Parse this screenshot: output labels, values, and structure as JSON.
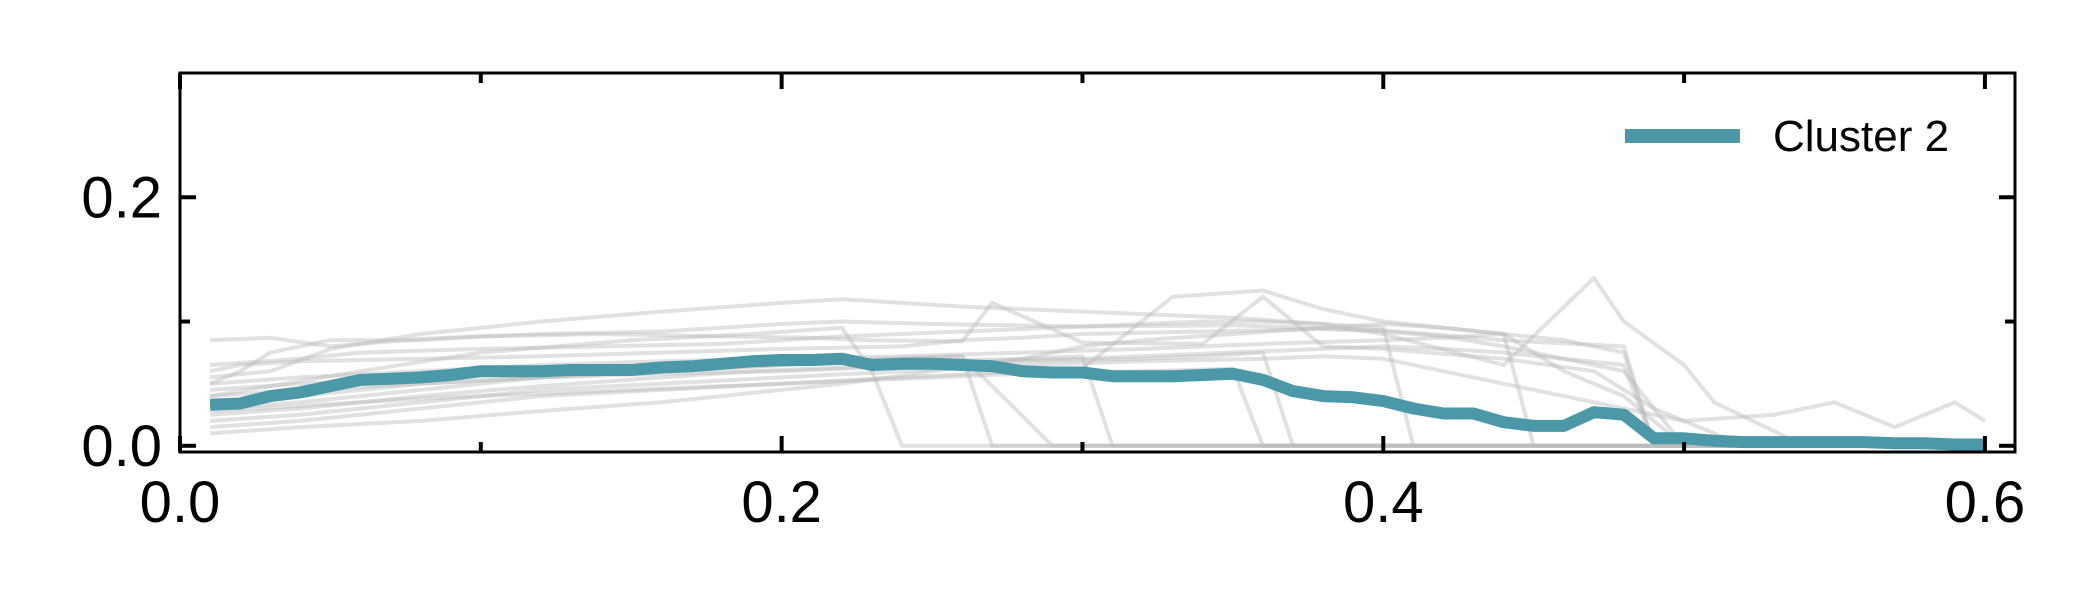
{
  "chart_data": {
    "type": "line",
    "title": "",
    "xlabel": "",
    "ylabel": "",
    "xlim": [
      0.0,
      0.61
    ],
    "ylim": [
      -0.005,
      0.3
    ],
    "x_ticks": [
      0.0,
      0.2,
      0.4,
      0.6
    ],
    "x_tick_labels": [
      "0.0",
      "0.2",
      "0.4",
      "0.6"
    ],
    "y_ticks": [
      0.0,
      0.2
    ],
    "y_tick_labels": [
      "0.0",
      "0.2"
    ],
    "y_minor_ticks": [
      0.1
    ],
    "x_minor_ticks": [
      0.1,
      0.3,
      0.5
    ],
    "grid": false,
    "legend": {
      "placement": "top-right",
      "entries": [
        "Cluster 2"
      ]
    },
    "colors": {
      "highlight": "#4a98a8",
      "background_lines": "#bdbdbd",
      "axis": "#000000"
    },
    "series": [
      {
        "name": "Cluster 2",
        "highlight": true,
        "x": [
          0.01,
          0.02,
          0.03,
          0.04,
          0.05,
          0.06,
          0.07,
          0.08,
          0.09,
          0.1,
          0.11,
          0.12,
          0.13,
          0.14,
          0.15,
          0.16,
          0.17,
          0.18,
          0.19,
          0.2,
          0.21,
          0.22,
          0.23,
          0.24,
          0.25,
          0.26,
          0.27,
          0.28,
          0.29,
          0.3,
          0.31,
          0.32,
          0.33,
          0.34,
          0.35,
          0.36,
          0.37,
          0.38,
          0.39,
          0.4,
          0.41,
          0.42,
          0.43,
          0.44,
          0.45,
          0.46,
          0.47,
          0.48,
          0.49,
          0.5,
          0.51,
          0.52,
          0.53,
          0.54,
          0.55,
          0.56,
          0.57,
          0.58,
          0.59,
          0.6
        ],
        "values": [
          0.033,
          0.034,
          0.04,
          0.043,
          0.048,
          0.053,
          0.054,
          0.055,
          0.057,
          0.06,
          0.06,
          0.06,
          0.061,
          0.061,
          0.061,
          0.063,
          0.064,
          0.066,
          0.068,
          0.069,
          0.069,
          0.07,
          0.065,
          0.066,
          0.066,
          0.065,
          0.064,
          0.06,
          0.059,
          0.059,
          0.056,
          0.056,
          0.056,
          0.057,
          0.058,
          0.053,
          0.044,
          0.04,
          0.039,
          0.036,
          0.03,
          0.026,
          0.026,
          0.019,
          0.016,
          0.016,
          0.027,
          0.025,
          0.006,
          0.006,
          0.004,
          0.003,
          0.003,
          0.003,
          0.003,
          0.003,
          0.002,
          0.002,
          0.001,
          0.001
        ]
      },
      {
        "x": [
          0.01,
          0.03,
          0.05,
          0.08,
          0.12,
          0.16,
          0.2,
          0.22,
          0.25,
          0.3,
          0.35,
          0.4,
          0.44,
          0.48,
          0.49,
          0.52,
          0.56,
          0.6
        ],
        "values": [
          0.085,
          0.087,
          0.08,
          0.086,
          0.09,
          0.092,
          0.098,
          0.1,
          0.098,
          0.096,
          0.097,
          0.093,
          0.085,
          0.08,
          0.0,
          0.0,
          0.0,
          0.0
        ]
      },
      {
        "x": [
          0.01,
          0.03,
          0.05,
          0.08,
          0.12,
          0.16,
          0.2,
          0.22,
          0.26,
          0.3,
          0.35,
          0.38,
          0.4,
          0.44,
          0.47,
          0.48,
          0.5,
          0.51,
          0.54,
          0.58,
          0.6
        ],
        "values": [
          0.055,
          0.06,
          0.078,
          0.09,
          0.1,
          0.108,
          0.115,
          0.118,
          0.112,
          0.108,
          0.103,
          0.098,
          0.09,
          0.065,
          0.135,
          0.1,
          0.065,
          0.035,
          0.0,
          0.0,
          0.0
        ]
      },
      {
        "x": [
          0.01,
          0.03,
          0.06,
          0.1,
          0.15,
          0.19,
          0.22,
          0.23,
          0.24,
          0.3,
          0.36,
          0.4,
          0.43,
          0.45,
          0.46,
          0.47,
          0.48,
          0.49,
          0.5,
          0.55,
          0.58,
          0.6
        ],
        "values": [
          0.04,
          0.048,
          0.06,
          0.075,
          0.085,
          0.09,
          0.095,
          0.06,
          0.0,
          0.0,
          0.0,
          0.0,
          0.0,
          0.0,
          0.0,
          0.0,
          0.0,
          0.0,
          0.0,
          0.0,
          0.0,
          0.0
        ]
      },
      {
        "x": [
          0.01,
          0.04,
          0.08,
          0.12,
          0.16,
          0.2,
          0.22,
          0.24,
          0.26,
          0.27,
          0.3,
          0.35,
          0.38,
          0.4,
          0.42,
          0.44,
          0.47,
          0.49,
          0.52,
          0.55,
          0.58,
          0.6
        ],
        "values": [
          0.03,
          0.035,
          0.045,
          0.055,
          0.06,
          0.065,
          0.068,
          0.07,
          0.072,
          0.0,
          0.0,
          0.0,
          0.0,
          0.0,
          0.0,
          0.0,
          0.0,
          0.0,
          0.0,
          0.0,
          0.0,
          0.0
        ]
      },
      {
        "x": [
          0.01,
          0.02,
          0.03,
          0.05,
          0.08,
          0.1,
          0.14,
          0.18,
          0.21,
          0.23,
          0.26,
          0.27,
          0.3,
          0.34,
          0.36,
          0.38,
          0.4,
          0.44,
          0.47,
          0.49,
          0.52,
          0.56,
          0.6
        ],
        "values": [
          0.05,
          0.06,
          0.075,
          0.085,
          0.085,
          0.088,
          0.09,
          0.088,
          0.087,
          0.085,
          0.084,
          0.115,
          0.083,
          0.082,
          0.12,
          0.08,
          0.078,
          0.07,
          0.06,
          0.03,
          0.0,
          0.0,
          0.0
        ]
      },
      {
        "x": [
          0.01,
          0.04,
          0.08,
          0.12,
          0.16,
          0.2,
          0.24,
          0.28,
          0.32,
          0.36,
          0.38,
          0.4,
          0.42,
          0.44,
          0.46,
          0.48,
          0.5,
          0.53,
          0.55,
          0.57,
          0.59,
          0.6
        ],
        "values": [
          0.02,
          0.025,
          0.035,
          0.045,
          0.05,
          0.055,
          0.06,
          0.065,
          0.068,
          0.07,
          0.072,
          0.07,
          0.06,
          0.05,
          0.04,
          0.03,
          0.02,
          0.025,
          0.035,
          0.015,
          0.035,
          0.02
        ]
      },
      {
        "x": [
          0.01,
          0.04,
          0.08,
          0.12,
          0.16,
          0.2,
          0.24,
          0.28,
          0.3,
          0.33,
          0.36,
          0.38,
          0.4,
          0.42,
          0.44,
          0.46,
          0.48,
          0.5,
          0.54,
          0.58,
          0.6
        ],
        "values": [
          0.015,
          0.02,
          0.03,
          0.04,
          0.045,
          0.05,
          0.055,
          0.06,
          0.062,
          0.12,
          0.125,
          0.11,
          0.1,
          0.095,
          0.09,
          0.06,
          0.04,
          0.0,
          0.0,
          0.0,
          0.0
        ]
      },
      {
        "x": [
          0.01,
          0.02,
          0.04,
          0.08,
          0.12,
          0.16,
          0.2,
          0.24,
          0.26,
          0.28,
          0.3,
          0.32,
          0.34,
          0.36,
          0.38,
          0.4,
          0.42,
          0.44,
          0.46,
          0.48,
          0.5,
          0.55,
          0.6
        ],
        "values": [
          0.06,
          0.065,
          0.068,
          0.07,
          0.072,
          0.075,
          0.078,
          0.08,
          0.085,
          0.087,
          0.09,
          0.091,
          0.092,
          0.093,
          0.094,
          0.092,
          0.088,
          0.08,
          0.07,
          0.06,
          0.0,
          0.0,
          0.0
        ]
      },
      {
        "x": [
          0.01,
          0.04,
          0.08,
          0.12,
          0.16,
          0.19,
          0.22,
          0.24,
          0.26,
          0.28,
          0.3,
          0.32,
          0.34,
          0.36,
          0.37,
          0.38,
          0.4,
          0.44,
          0.48,
          0.52,
          0.56,
          0.6
        ],
        "values": [
          0.025,
          0.03,
          0.04,
          0.048,
          0.055,
          0.06,
          0.063,
          0.065,
          0.067,
          0.068,
          0.069,
          0.07,
          0.072,
          0.075,
          0.0,
          0.0,
          0.0,
          0.0,
          0.0,
          0.0,
          0.0,
          0.0
        ]
      },
      {
        "x": [
          0.01,
          0.04,
          0.08,
          0.12,
          0.16,
          0.2,
          0.22,
          0.24,
          0.26,
          0.28,
          0.3,
          0.32,
          0.34,
          0.36,
          0.38,
          0.4,
          0.42,
          0.44,
          0.46,
          0.48,
          0.49,
          0.52,
          0.56,
          0.6
        ],
        "values": [
          0.035,
          0.04,
          0.05,
          0.055,
          0.058,
          0.06,
          0.062,
          0.065,
          0.067,
          0.069,
          0.07,
          0.072,
          0.074,
          0.076,
          0.078,
          0.08,
          0.078,
          0.075,
          0.07,
          0.065,
          0.0,
          0.0,
          0.0,
          0.0
        ]
      },
      {
        "x": [
          0.01,
          0.04,
          0.08,
          0.12,
          0.16,
          0.2,
          0.24,
          0.28,
          0.3,
          0.31,
          0.34,
          0.38,
          0.42,
          0.46,
          0.5,
          0.54,
          0.58,
          0.6
        ],
        "values": [
          0.045,
          0.05,
          0.055,
          0.06,
          0.063,
          0.065,
          0.068,
          0.07,
          0.072,
          0.0,
          0.0,
          0.0,
          0.0,
          0.0,
          0.0,
          0.0,
          0.0,
          0.0
        ]
      },
      {
        "x": [
          0.01,
          0.04,
          0.08,
          0.12,
          0.16,
          0.18,
          0.2,
          0.22,
          0.25,
          0.28,
          0.3,
          0.32,
          0.35,
          0.38,
          0.4,
          0.42,
          0.44,
          0.46,
          0.48,
          0.49,
          0.52,
          0.56,
          0.6
        ],
        "values": [
          0.01,
          0.015,
          0.02,
          0.028,
          0.035,
          0.04,
          0.045,
          0.05,
          0.06,
          0.07,
          0.08,
          0.085,
          0.09,
          0.095,
          0.098,
          0.095,
          0.09,
          0.085,
          0.075,
          0.0,
          0.0,
          0.0,
          0.0
        ]
      },
      {
        "x": [
          0.01,
          0.04,
          0.06,
          0.1,
          0.14,
          0.18,
          0.2,
          0.22,
          0.24,
          0.26,
          0.28,
          0.3,
          0.32,
          0.34,
          0.36,
          0.38,
          0.4,
          0.41,
          0.44,
          0.48,
          0.52,
          0.56,
          0.6
        ],
        "values": [
          0.065,
          0.07,
          0.075,
          0.078,
          0.08,
          0.082,
          0.085,
          0.088,
          0.09,
          0.092,
          0.094,
          0.096,
          0.098,
          0.1,
          0.1,
          0.098,
          0.095,
          0.0,
          0.0,
          0.0,
          0.0,
          0.0,
          0.0
        ]
      },
      {
        "x": [
          0.01,
          0.04,
          0.08,
          0.12,
          0.16,
          0.2,
          0.22,
          0.23,
          0.26,
          0.29,
          0.32,
          0.36,
          0.4,
          0.44,
          0.48,
          0.52,
          0.56,
          0.6
        ],
        "values": [
          0.04,
          0.045,
          0.05,
          0.055,
          0.06,
          0.065,
          0.068,
          0.07,
          0.072,
          0.0,
          0.0,
          0.0,
          0.0,
          0.0,
          0.0,
          0.0,
          0.0,
          0.0
        ]
      },
      {
        "x": [
          0.01,
          0.04,
          0.08,
          0.12,
          0.16,
          0.2,
          0.24,
          0.28,
          0.32,
          0.35,
          0.36,
          0.38,
          0.4,
          0.44,
          0.48,
          0.52,
          0.56,
          0.6
        ],
        "values": [
          0.028,
          0.032,
          0.038,
          0.042,
          0.046,
          0.05,
          0.054,
          0.058,
          0.06,
          0.062,
          0.0,
          0.0,
          0.0,
          0.0,
          0.0,
          0.0,
          0.0,
          0.0
        ]
      },
      {
        "x": [
          0.01,
          0.04,
          0.08,
          0.12,
          0.16,
          0.2,
          0.24,
          0.28,
          0.32,
          0.36,
          0.4,
          0.42,
          0.44,
          0.45,
          0.48,
          0.52,
          0.56,
          0.6
        ],
        "values": [
          0.05,
          0.055,
          0.06,
          0.065,
          0.068,
          0.07,
          0.072,
          0.075,
          0.078,
          0.082,
          0.085,
          0.087,
          0.09,
          0.0,
          0.0,
          0.0,
          0.0,
          0.0
        ]
      }
    ]
  }
}
